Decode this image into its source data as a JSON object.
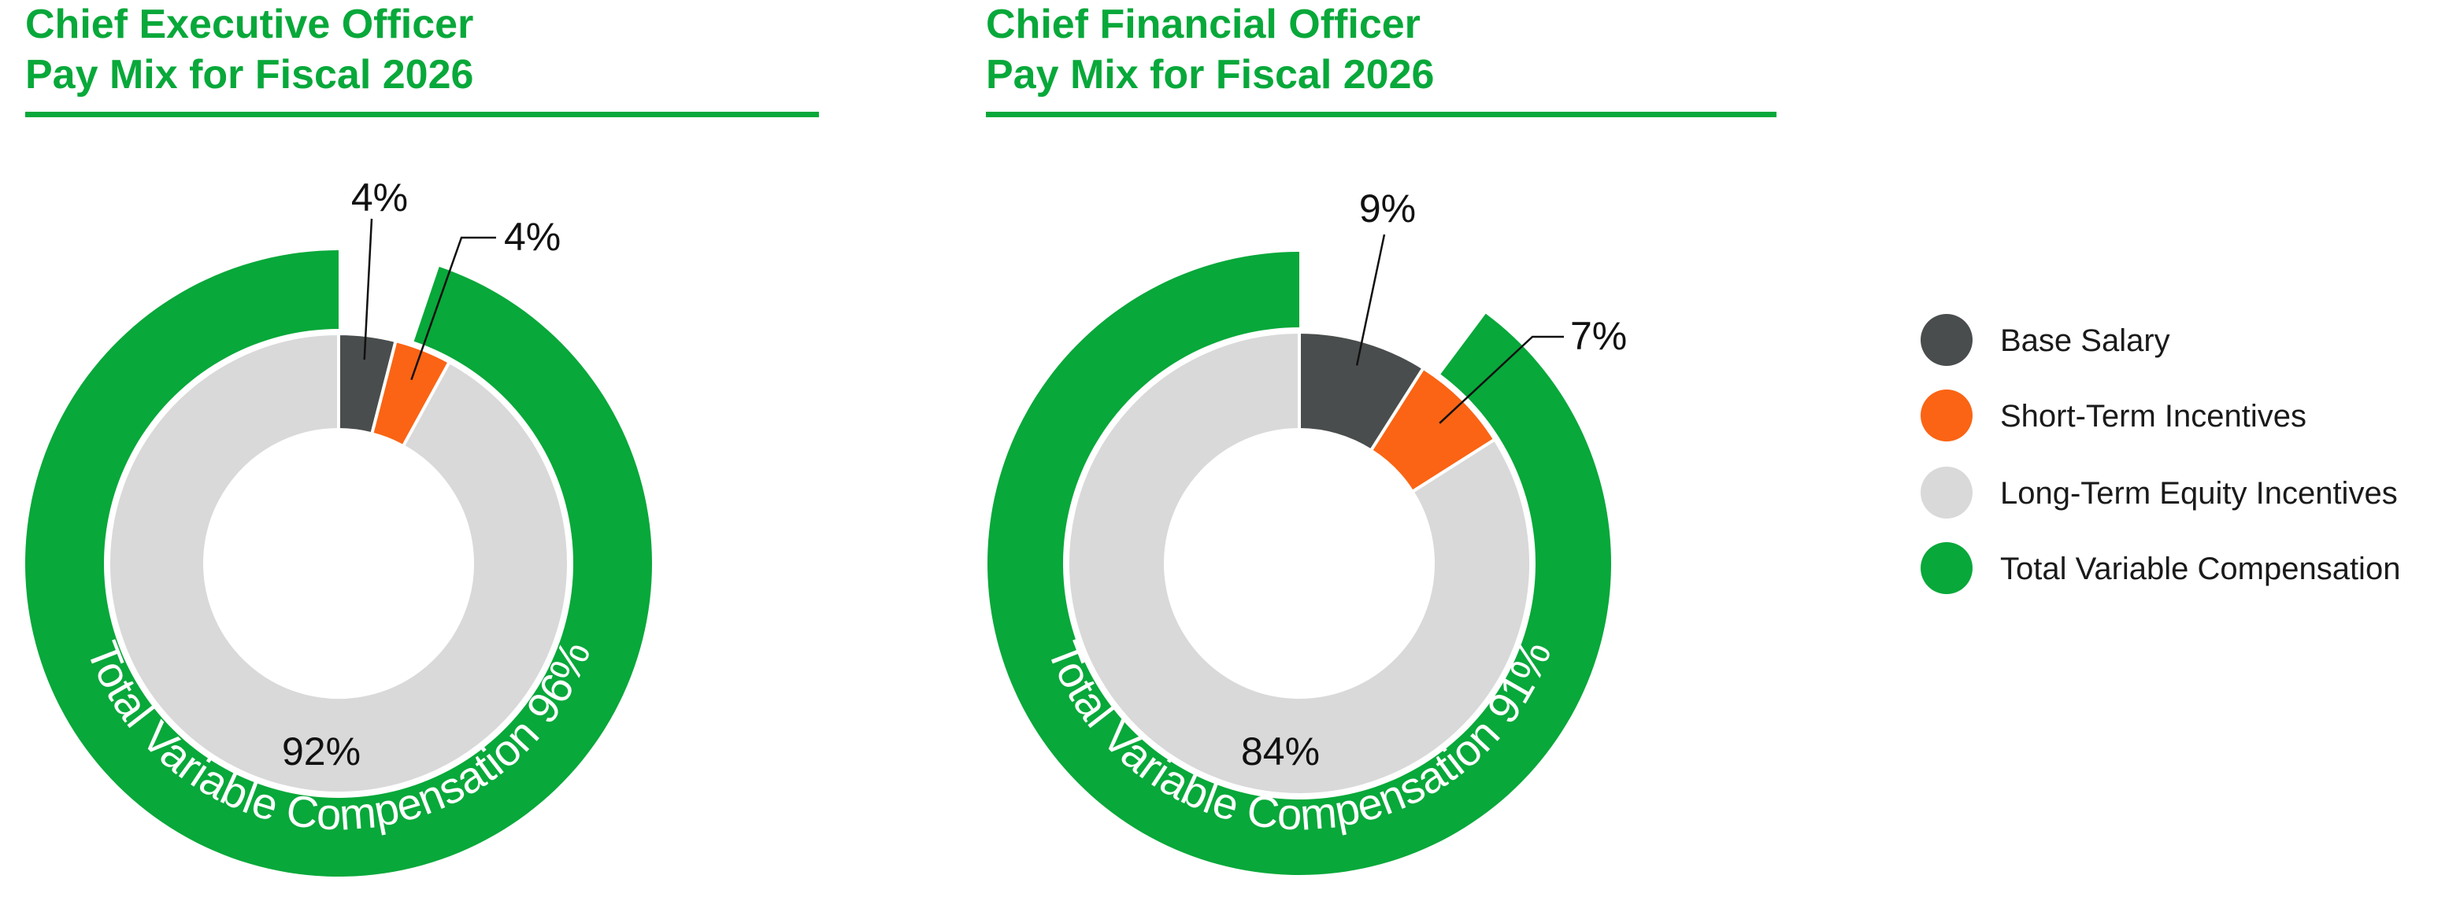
{
  "colors": {
    "base_salary": "#4a4d4d",
    "short_term": "#fa6414",
    "long_term": "#d9d9d9",
    "total_variable": "#08a83a",
    "title": "#08a83a"
  },
  "legend": [
    {
      "label": "Base Salary",
      "color": "#4a4d4d"
    },
    {
      "label": "Short-Term Incentives",
      "color": "#fa6414"
    },
    {
      "label": "Long-Term Equity Incentives",
      "color": "#d9d9d9"
    },
    {
      "label": "Total Variable Compensation",
      "color": "#08a83a"
    }
  ],
  "chart_data": [
    {
      "type": "pie",
      "title_line1": "Chief Executive Officer",
      "title_line2": "Pay Mix for Fiscal 2026",
      "slices": [
        {
          "name": "Base Salary",
          "value": 4,
          "label": "4%"
        },
        {
          "name": "Short-Term Incentives",
          "value": 4,
          "label": "4%"
        },
        {
          "name": "Long-Term Equity Incentives",
          "value": 92,
          "label": "92%"
        }
      ],
      "outer_ring": {
        "name": "Total Variable Compensation",
        "value": 96,
        "label": "Total Variable Compensation 96%"
      }
    },
    {
      "type": "pie",
      "title_line1": "Chief Financial Officer",
      "title_line2": "Pay Mix for Fiscal 2026",
      "slices": [
        {
          "name": "Base Salary",
          "value": 9,
          "label": "9%"
        },
        {
          "name": "Short-Term Incentives",
          "value": 7,
          "label": "7%"
        },
        {
          "name": "Long-Term Equity Incentives",
          "value": 84,
          "label": "84%"
        }
      ],
      "outer_ring": {
        "name": "Total Variable Compensation",
        "value": 91,
        "label": "Total Variable Compensation 91%"
      }
    }
  ]
}
